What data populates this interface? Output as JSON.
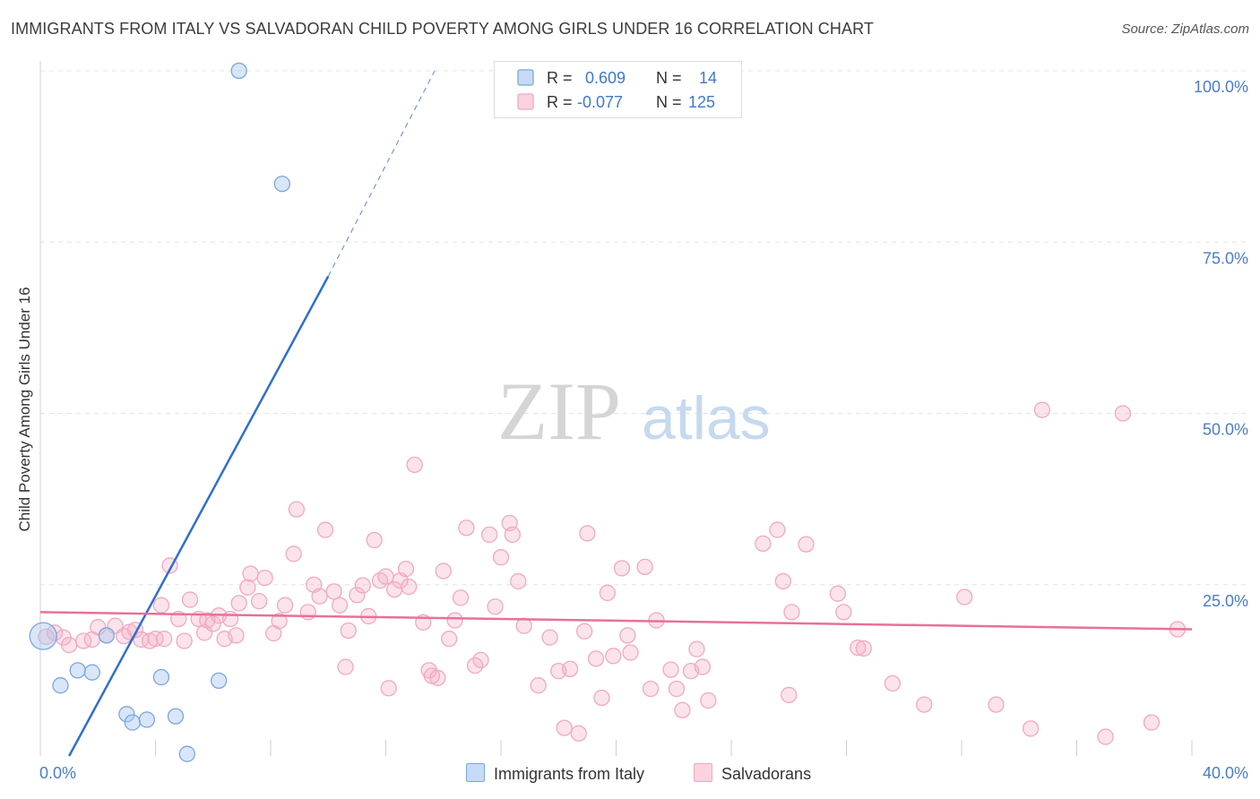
{
  "title": "IMMIGRANTS FROM ITALY VS SALVADORAN CHILD POVERTY AMONG GIRLS UNDER 16 CORRELATION CHART",
  "source": "Source: ZipAtlas.com",
  "watermark": {
    "zip": "ZIP",
    "atlas": "atlas"
  },
  "colors": {
    "italy": "#7aa7e0",
    "italy_line": "#2f6fcc",
    "salvadoran": "#f2a8c0",
    "salvadoran_line": "#e8709a",
    "tick_label": "#4a7cc9"
  },
  "legend": {
    "italy": {
      "r_label": "R =",
      "r_value": "0.609",
      "n_label": "N =",
      "n_value": "14"
    },
    "salvadoran": {
      "r_label": "R =",
      "r_value": "-0.077",
      "n_label": "N =",
      "n_value": "125"
    }
  },
  "bottom_legend": {
    "italy": "Immigrants from Italy",
    "salvadoran": "Salvadorans"
  },
  "chart_data": {
    "type": "scatter",
    "ylabel": "Child Poverty Among Girls Under 16",
    "xlim": [
      0,
      40
    ],
    "ylim": [
      0,
      100
    ],
    "x_tick_labels": {
      "min": "0.0%",
      "max": "40.0%"
    },
    "y_ticks": [
      25,
      50,
      75,
      100
    ],
    "y_tick_labels": [
      "25.0%",
      "50.0%",
      "75.0%",
      "100.0%"
    ],
    "grid": true,
    "series": [
      {
        "name": "Immigrants from Italy",
        "points": [
          [
            0.1,
            17.5
          ],
          [
            0.7,
            10.3
          ],
          [
            1.3,
            12.5
          ],
          [
            1.8,
            12.2
          ],
          [
            2.3,
            17.6
          ],
          [
            3.0,
            6.1
          ],
          [
            3.2,
            4.9
          ],
          [
            3.7,
            5.3
          ],
          [
            4.2,
            11.5
          ],
          [
            4.7,
            5.8
          ],
          [
            5.1,
            0.3
          ],
          [
            6.2,
            11.0
          ],
          [
            6.9,
            100.0
          ],
          [
            8.4,
            83.5
          ]
        ],
        "trend": {
          "x": [
            1.0,
            10.0
          ],
          "y": [
            0.0,
            70.0
          ],
          "dashed_to": [
            13.7,
            100.0
          ]
        }
      },
      {
        "name": "Salvadorans",
        "points": [
          [
            0.2,
            17.4
          ],
          [
            0.5,
            18.0
          ],
          [
            0.8,
            17.3
          ],
          [
            1.0,
            16.2
          ],
          [
            1.5,
            16.8
          ],
          [
            1.8,
            17.0
          ],
          [
            2.0,
            18.8
          ],
          [
            2.3,
            17.6
          ],
          [
            2.6,
            19.0
          ],
          [
            2.9,
            17.5
          ],
          [
            3.1,
            18.1
          ],
          [
            3.3,
            18.4
          ],
          [
            3.5,
            17.0
          ],
          [
            3.8,
            16.8
          ],
          [
            4.0,
            17.1
          ],
          [
            4.2,
            22.0
          ],
          [
            4.3,
            17.1
          ],
          [
            4.5,
            27.8
          ],
          [
            4.8,
            20.0
          ],
          [
            5.0,
            16.8
          ],
          [
            5.2,
            22.8
          ],
          [
            5.5,
            20.0
          ],
          [
            5.7,
            18.0
          ],
          [
            5.8,
            19.8
          ],
          [
            6.0,
            19.3
          ],
          [
            6.2,
            20.5
          ],
          [
            6.4,
            17.1
          ],
          [
            6.6,
            20.0
          ],
          [
            6.8,
            17.6
          ],
          [
            6.9,
            22.3
          ],
          [
            7.2,
            24.6
          ],
          [
            7.3,
            26.6
          ],
          [
            7.6,
            22.6
          ],
          [
            7.8,
            26.0
          ],
          [
            8.1,
            17.9
          ],
          [
            8.3,
            19.7
          ],
          [
            8.5,
            22.0
          ],
          [
            8.8,
            29.5
          ],
          [
            8.9,
            36.0
          ],
          [
            9.3,
            21.0
          ],
          [
            9.5,
            25.0
          ],
          [
            9.7,
            23.3
          ],
          [
            9.9,
            33.0
          ],
          [
            10.2,
            24.0
          ],
          [
            10.4,
            22.0
          ],
          [
            10.6,
            13.0
          ],
          [
            10.7,
            18.3
          ],
          [
            11.0,
            23.5
          ],
          [
            11.2,
            24.9
          ],
          [
            11.4,
            20.4
          ],
          [
            11.6,
            31.5
          ],
          [
            11.8,
            25.6
          ],
          [
            12.0,
            26.2
          ],
          [
            12.1,
            9.9
          ],
          [
            12.3,
            24.3
          ],
          [
            12.5,
            25.6
          ],
          [
            12.7,
            27.3
          ],
          [
            12.8,
            24.7
          ],
          [
            13.0,
            42.5
          ],
          [
            13.3,
            19.5
          ],
          [
            13.5,
            12.5
          ],
          [
            13.6,
            11.7
          ],
          [
            13.8,
            11.4
          ],
          [
            14.0,
            27.0
          ],
          [
            14.2,
            17.1
          ],
          [
            14.4,
            19.8
          ],
          [
            14.6,
            23.1
          ],
          [
            14.8,
            33.3
          ],
          [
            15.1,
            13.2
          ],
          [
            15.3,
            14.0
          ],
          [
            15.6,
            32.3
          ],
          [
            15.8,
            21.8
          ],
          [
            16.0,
            29.0
          ],
          [
            16.3,
            34.0
          ],
          [
            16.4,
            32.3
          ],
          [
            16.6,
            25.5
          ],
          [
            16.8,
            19.0
          ],
          [
            17.3,
            10.3
          ],
          [
            17.7,
            17.3
          ],
          [
            18.0,
            12.4
          ],
          [
            18.2,
            4.1
          ],
          [
            18.4,
            12.7
          ],
          [
            18.7,
            3.3
          ],
          [
            18.9,
            18.2
          ],
          [
            19.0,
            32.5
          ],
          [
            19.3,
            14.2
          ],
          [
            19.5,
            8.5
          ],
          [
            19.7,
            23.8
          ],
          [
            19.9,
            14.6
          ],
          [
            20.2,
            27.4
          ],
          [
            20.4,
            17.6
          ],
          [
            20.5,
            15.1
          ],
          [
            21.0,
            27.6
          ],
          [
            21.2,
            9.8
          ],
          [
            21.4,
            19.8
          ],
          [
            21.9,
            12.6
          ],
          [
            22.1,
            9.8
          ],
          [
            22.3,
            6.7
          ],
          [
            22.6,
            12.4
          ],
          [
            22.8,
            15.6
          ],
          [
            23.0,
            13.0
          ],
          [
            23.2,
            8.1
          ],
          [
            25.1,
            31.0
          ],
          [
            25.6,
            33.0
          ],
          [
            25.8,
            25.5
          ],
          [
            26.0,
            8.9
          ],
          [
            26.1,
            21.0
          ],
          [
            26.6,
            30.9
          ],
          [
            27.7,
            23.7
          ],
          [
            27.9,
            21.0
          ],
          [
            28.4,
            15.8
          ],
          [
            28.6,
            15.7
          ],
          [
            29.6,
            10.6
          ],
          [
            30.7,
            7.5
          ],
          [
            32.1,
            23.2
          ],
          [
            33.2,
            7.5
          ],
          [
            34.4,
            4.0
          ],
          [
            34.8,
            50.5
          ],
          [
            37.0,
            2.8
          ],
          [
            37.6,
            50.0
          ],
          [
            38.6,
            4.9
          ],
          [
            39.5,
            18.5
          ]
        ],
        "trend": {
          "x": [
            0,
            40
          ],
          "y": [
            21.0,
            18.5
          ]
        }
      }
    ]
  }
}
